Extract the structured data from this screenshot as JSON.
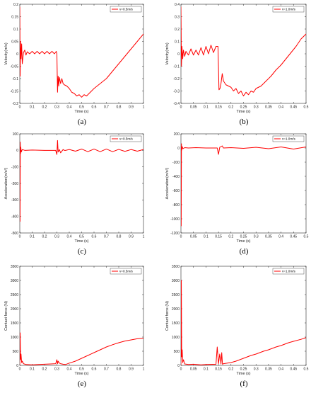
{
  "colors": {
    "series": "#ff0000",
    "axis": "#262626",
    "background": "#ffffff"
  },
  "chart_data": [
    {
      "id": "a",
      "type": "line",
      "caption": "(a)",
      "xlabel": "Time (s)",
      "ylabel": "Velocity(m/s)",
      "xlim": [
        0,
        1
      ],
      "ylim": [
        -0.2,
        0.2
      ],
      "xticks": [
        0,
        0.1,
        0.2,
        0.3,
        0.4,
        0.5,
        0.6,
        0.7,
        0.8,
        0.9,
        1
      ],
      "xtick_labels": [
        "0",
        "0.1",
        "0.2",
        "0.3",
        "0.4",
        "0.5",
        "0.6",
        "0.7",
        "0.8",
        "0.9",
        "1"
      ],
      "yticks": [
        -0.2,
        -0.15,
        -0.1,
        -0.05,
        0,
        0.05,
        0.1,
        0.15,
        0.2
      ],
      "ytick_labels": [
        "-0.2",
        "-0.15",
        "-0.1",
        "-0.05",
        "0",
        "0.05",
        "0.1",
        "0.15",
        "0.2"
      ],
      "legend": "v=0.5m/s",
      "legend_position": "top-right",
      "series": [
        {
          "name": "v=0.5m/s",
          "x": [
            0,
            0.003,
            0.006,
            0.01,
            0.015,
            0.02,
            0.03,
            0.04,
            0.05,
            0.06,
            0.08,
            0.1,
            0.12,
            0.14,
            0.16,
            0.18,
            0.2,
            0.22,
            0.24,
            0.26,
            0.28,
            0.295,
            0.3,
            0.305,
            0.31,
            0.315,
            0.32,
            0.33,
            0.34,
            0.35,
            0.36,
            0.38,
            0.4,
            0.42,
            0.44,
            0.46,
            0.48,
            0.5,
            0.52,
            0.54,
            0.56,
            0.58,
            0.6,
            0.65,
            0.7,
            0.75,
            0.8,
            0.85,
            0.9,
            0.95,
            1
          ],
          "y": [
            0.19,
            -0.09,
            0.05,
            -0.02,
            0.04,
            -0.04,
            0.005,
            0.015,
            -0.005,
            0.008,
            0.0,
            0.01,
            0.0,
            0.01,
            0.0,
            0.01,
            0.0,
            0.01,
            0.0,
            0.01,
            0.0,
            0.01,
            0.0,
            -0.155,
            -0.09,
            -0.13,
            -0.095,
            -0.12,
            -0.1,
            -0.12,
            -0.125,
            -0.13,
            -0.14,
            -0.155,
            -0.16,
            -0.17,
            -0.165,
            -0.175,
            -0.165,
            -0.17,
            -0.16,
            -0.15,
            -0.14,
            -0.12,
            -0.1,
            -0.07,
            -0.04,
            -0.01,
            0.02,
            0.05,
            0.08
          ]
        }
      ]
    },
    {
      "id": "b",
      "type": "line",
      "caption": "(b)",
      "xlabel": "Time (s)",
      "ylabel": "Velocity(m/s)",
      "xlim": [
        0,
        0.5
      ],
      "ylim": [
        -0.4,
        0.4
      ],
      "xticks": [
        0,
        0.05,
        0.1,
        0.15,
        0.2,
        0.25,
        0.3,
        0.35,
        0.4,
        0.45,
        0.5
      ],
      "xtick_labels": [
        "0",
        "0.05",
        "0.1",
        "0.15",
        "0.2",
        "0.25",
        "0.3",
        "0.35",
        "0.4",
        "0.45",
        "0.5"
      ],
      "yticks": [
        -0.4,
        -0.3,
        -0.2,
        -0.1,
        0,
        0.1,
        0.2,
        0.3,
        0.4
      ],
      "ytick_labels": [
        "-0.4",
        "-0.3",
        "-0.2",
        "-0.1",
        "0",
        "0.1",
        "0.2",
        "0.3",
        "0.4"
      ],
      "legend": "v=1.0m/s",
      "legend_position": "top-right",
      "series": [
        {
          "name": "v=1.0m/s",
          "x": [
            0,
            0.002,
            0.004,
            0.007,
            0.01,
            0.015,
            0.02,
            0.03,
            0.04,
            0.05,
            0.06,
            0.07,
            0.08,
            0.09,
            0.1,
            0.11,
            0.12,
            0.13,
            0.14,
            0.148,
            0.152,
            0.156,
            0.16,
            0.165,
            0.17,
            0.18,
            0.19,
            0.2,
            0.21,
            0.22,
            0.23,
            0.24,
            0.25,
            0.26,
            0.27,
            0.28,
            0.29,
            0.3,
            0.32,
            0.34,
            0.36,
            0.38,
            0.4,
            0.42,
            0.44,
            0.46,
            0.48,
            0.5
          ],
          "y": [
            0.38,
            -0.1,
            0.06,
            -0.04,
            0.03,
            -0.02,
            0.02,
            -0.01,
            0.04,
            -0.01,
            0.03,
            -0.01,
            0.05,
            -0.01,
            0.06,
            0.0,
            0.07,
            0.01,
            0.06,
            0.06,
            -0.29,
            -0.28,
            -0.24,
            -0.16,
            -0.22,
            -0.25,
            -0.26,
            -0.27,
            -0.3,
            -0.28,
            -0.32,
            -0.3,
            -0.34,
            -0.31,
            -0.33,
            -0.3,
            -0.31,
            -0.28,
            -0.26,
            -0.22,
            -0.18,
            -0.13,
            -0.09,
            -0.04,
            0.01,
            0.06,
            0.12,
            0.16
          ]
        }
      ]
    },
    {
      "id": "c",
      "type": "line",
      "caption": "(c)",
      "xlabel": "Time (s)",
      "ylabel": "Acceleration(m/s²)",
      "xlim": [
        0,
        1
      ],
      "ylim": [
        -500,
        100
      ],
      "xticks": [
        0,
        0.1,
        0.2,
        0.3,
        0.4,
        0.5,
        0.6,
        0.7,
        0.8,
        0.9,
        1
      ],
      "xtick_labels": [
        "0",
        "0.1",
        "0.2",
        "0.3",
        "0.4",
        "0.5",
        "0.6",
        "0.7",
        "0.8",
        "0.9",
        "1"
      ],
      "yticks": [
        -500,
        -400,
        -300,
        -200,
        -100,
        0,
        100
      ],
      "ytick_labels": [
        "-500",
        "-400",
        "-300",
        "-200",
        "-100",
        "0",
        "100"
      ],
      "legend": "v=0.5m/s",
      "legend_position": "top-right",
      "series": [
        {
          "name": "v=0.5m/s",
          "x": [
            0,
            0.002,
            0.004,
            0.006,
            0.008,
            0.012,
            0.02,
            0.04,
            0.1,
            0.2,
            0.29,
            0.3,
            0.305,
            0.31,
            0.32,
            0.33,
            0.35,
            0.36,
            0.37,
            0.4,
            0.45,
            0.5,
            0.55,
            0.6,
            0.65,
            0.7,
            0.75,
            0.8,
            0.85,
            0.9,
            0.95,
            1
          ],
          "y": [
            0,
            -430,
            50,
            -20,
            20,
            -10,
            5,
            0,
            2,
            0,
            0,
            -25,
            60,
            -10,
            5,
            -15,
            5,
            0,
            0,
            5,
            -5,
            8,
            -8,
            8,
            -8,
            8,
            -8,
            6,
            -6,
            5,
            -5,
            5
          ]
        }
      ]
    },
    {
      "id": "d",
      "type": "line",
      "caption": "(d)",
      "xlabel": "Time (s)",
      "ylabel": "Acceleration(m/s²)",
      "xlim": [
        0,
        0.5
      ],
      "ylim": [
        -1200,
        200
      ],
      "xticks": [
        0,
        0.05,
        0.1,
        0.15,
        0.2,
        0.25,
        0.3,
        0.35,
        0.4,
        0.45,
        0.5
      ],
      "xtick_labels": [
        "0",
        "0.05",
        "0.1",
        "0.15",
        "0.2",
        "0.25",
        "0.3",
        "0.35",
        "0.4",
        "0.45",
        "0.5"
      ],
      "yticks": [
        -1200,
        -1000,
        -800,
        -600,
        -400,
        -200,
        0,
        200
      ],
      "ytick_labels": [
        "-1200",
        "-1000",
        "-800",
        "-600",
        "-400",
        "-200",
        "0",
        "200"
      ],
      "legend": "v=1.0m/s",
      "legend_position": "top-right",
      "series": [
        {
          "name": "v=1.0m/s",
          "x": [
            0,
            0.001,
            0.002,
            0.003,
            0.005,
            0.008,
            0.015,
            0.03,
            0.06,
            0.1,
            0.145,
            0.15,
            0.155,
            0.165,
            0.17,
            0.2,
            0.25,
            0.3,
            0.35,
            0.4,
            0.45,
            0.5
          ],
          "y": [
            0,
            -1100,
            60,
            -30,
            20,
            -10,
            5,
            0,
            5,
            0,
            0,
            -90,
            10,
            30,
            0,
            5,
            -5,
            10,
            -10,
            15,
            -15,
            15
          ]
        }
      ]
    },
    {
      "id": "e",
      "type": "line",
      "caption": "(e)",
      "xlabel": "Time (s)",
      "ylabel": "Contact force (N)",
      "xlim": [
        0,
        1
      ],
      "ylim": [
        0,
        3500
      ],
      "xticks": [
        0,
        0.1,
        0.2,
        0.3,
        0.4,
        0.5,
        0.6,
        0.7,
        0.8,
        0.9,
        1
      ],
      "xtick_labels": [
        "0",
        "0.1",
        "0.2",
        "0.3",
        "0.4",
        "0.5",
        "0.6",
        "0.7",
        "0.8",
        "0.9",
        "1"
      ],
      "yticks": [
        0,
        500,
        1000,
        1500,
        2000,
        2500,
        3000,
        3500
      ],
      "ytick_labels": [
        "0",
        "500",
        "1000",
        "1500",
        "2000",
        "2500",
        "3000",
        "3500"
      ],
      "legend": "v=0.5m/s",
      "legend_position": "top-right",
      "series": [
        {
          "name": "v=0.5m/s",
          "x": [
            0,
            0.003,
            0.006,
            0.01,
            0.015,
            0.02,
            0.03,
            0.05,
            0.1,
            0.15,
            0.2,
            0.25,
            0.29,
            0.3,
            0.305,
            0.31,
            0.32,
            0.33,
            0.35,
            0.37,
            0.4,
            0.45,
            0.5,
            0.55,
            0.6,
            0.65,
            0.7,
            0.75,
            0.8,
            0.85,
            0.9,
            0.95,
            1
          ],
          "y": [
            0,
            1150,
            200,
            400,
            100,
            150,
            60,
            30,
            20,
            30,
            40,
            50,
            60,
            200,
            60,
            150,
            80,
            60,
            40,
            30,
            80,
            150,
            250,
            350,
            450,
            550,
            650,
            730,
            800,
            860,
            900,
            940,
            960
          ]
        }
      ]
    },
    {
      "id": "f",
      "type": "line",
      "caption": "(f)",
      "xlabel": "Time (s)",
      "ylabel": "Contact force (N)",
      "xlim": [
        0,
        0.5
      ],
      "ylim": [
        0,
        3500
      ],
      "xticks": [
        0,
        0.05,
        0.1,
        0.15,
        0.2,
        0.25,
        0.3,
        0.35,
        0.4,
        0.45,
        0.5
      ],
      "xtick_labels": [
        "0",
        "0.05",
        "0.1",
        "0.15",
        "0.2",
        "0.25",
        "0.3",
        "0.35",
        "0.4",
        "0.45",
        "0.5"
      ],
      "yticks": [
        0,
        500,
        1000,
        1500,
        2000,
        2500,
        3000,
        3500
      ],
      "ytick_labels": [
        "0",
        "500",
        "1000",
        "1500",
        "2000",
        "2500",
        "3000",
        "3500"
      ],
      "legend": "v=1.0m/s",
      "legend_position": "top-right",
      "series": [
        {
          "name": "v=1.0m/s",
          "x": [
            0,
            0.0015,
            0.003,
            0.005,
            0.007,
            0.01,
            0.015,
            0.03,
            0.05,
            0.08,
            0.1,
            0.14,
            0.145,
            0.15,
            0.155,
            0.16,
            0.163,
            0.166,
            0.17,
            0.2,
            0.22,
            0.25,
            0.28,
            0.3,
            0.33,
            0.35,
            0.38,
            0.4,
            0.43,
            0.45,
            0.48,
            0.5
          ],
          "y": [
            0,
            3000,
            300,
            550,
            100,
            200,
            50,
            30,
            40,
            20,
            30,
            40,
            650,
            60,
            400,
            50,
            450,
            40,
            60,
            100,
            150,
            250,
            350,
            400,
            500,
            550,
            650,
            700,
            800,
            850,
            920,
            980
          ]
        }
      ]
    }
  ]
}
